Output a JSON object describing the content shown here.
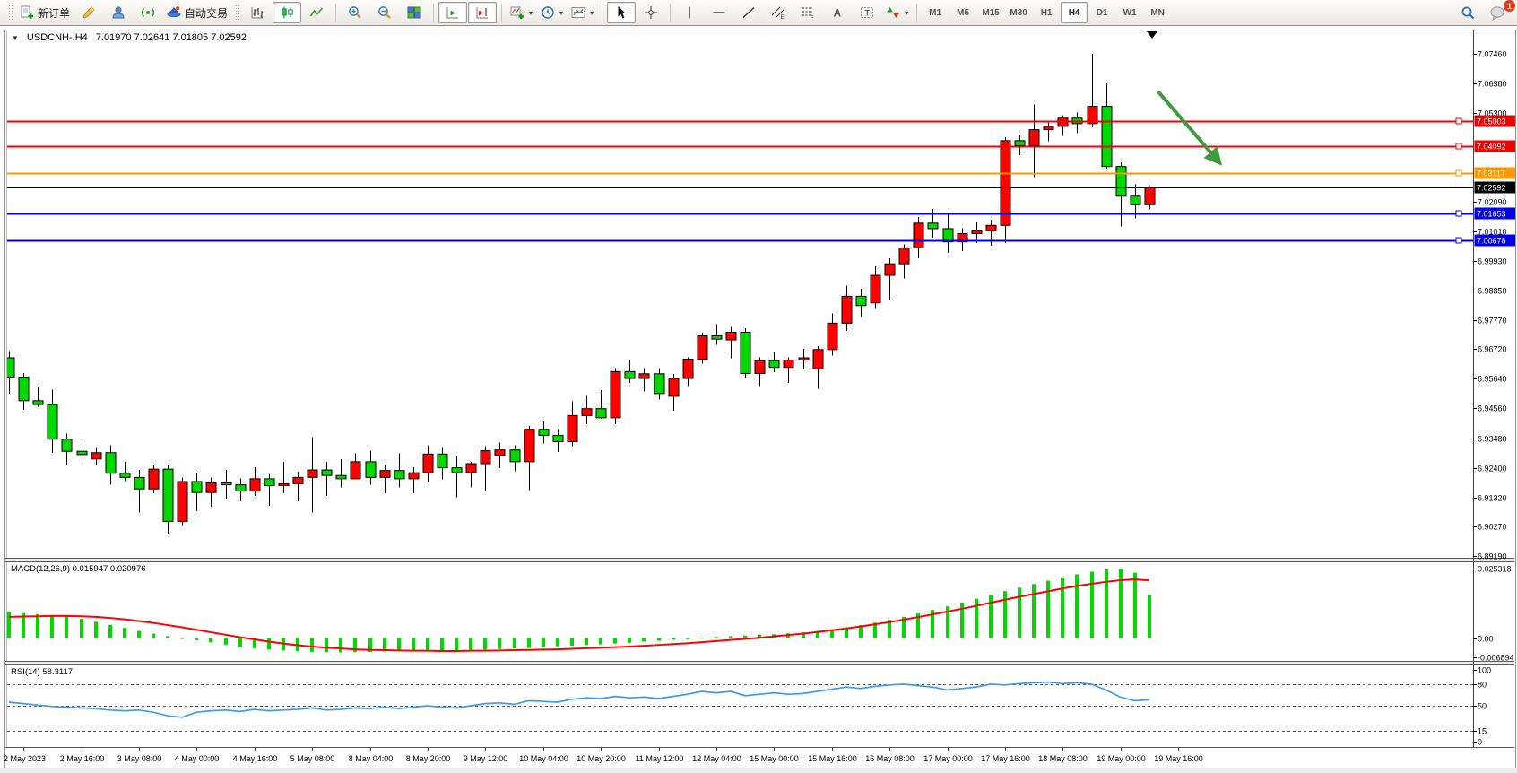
{
  "icons": {
    "dropdown_arrow": "▾",
    "collapse_triangle": "▼"
  },
  "toolbar": {
    "new_order_label": "新订单",
    "auto_trading_label": "自动交易",
    "timeframes": [
      "M1",
      "M5",
      "M15",
      "M30",
      "H1",
      "H4",
      "D1",
      "W1",
      "MN"
    ],
    "active_timeframe": "H4",
    "notification_count": "1"
  },
  "chart": {
    "title_symbol": "USDCNH-,H4",
    "title_ohlc": "7.01970 7.02641 7.01805 7.02592"
  },
  "chart_data": {
    "type": "candlestick+indicators",
    "symbol": "USDCNH-",
    "period": "H4",
    "current_ohlc": {
      "open": "7.01970",
      "high": "7.02641",
      "low": "7.01805",
      "close": "7.02592"
    },
    "bull_color": "#FF0000",
    "bear_color": "#00D800",
    "main_ylim": [
      6.8919,
      7.0746
    ],
    "main_axis_ticks": [
      "7.07460",
      "7.06380",
      "7.05300",
      "7.02090",
      "7.01010",
      "6.99930",
      "6.98850",
      "6.97770",
      "6.96720",
      "6.95640",
      "6.94560",
      "6.93480",
      "6.92400",
      "6.91320",
      "6.90270",
      "6.89190"
    ],
    "hlines": [
      {
        "price": 7.05003,
        "label": "7.05003",
        "color": "#F00000",
        "width": 2
      },
      {
        "price": 7.04092,
        "label": "7.04092",
        "color": "#F00000",
        "width": 2
      },
      {
        "price": 7.03117,
        "label": "7.03117",
        "color": "#FF9800",
        "width": 2
      },
      {
        "price": 7.02592,
        "label": "7.02592",
        "color": "#000000",
        "width": 1
      },
      {
        "price": 7.01653,
        "label": "7.01653",
        "color": "#0000F0",
        "width": 2
      },
      {
        "price": 7.00678,
        "label": "7.00678",
        "color": "#0000F0",
        "width": 2
      }
    ],
    "x_labels": [
      "2 May 2023",
      "2 May 16:00",
      "3 May 08:00",
      "4 May 00:00",
      "4 May 16:00",
      "5 May 08:00",
      "8 May 04:00",
      "8 May 20:00",
      "9 May 12:00",
      "10 May 04:00",
      "10 May 20:00",
      "11 May 12:00",
      "12 May 04:00",
      "15 May 00:00",
      "15 May 16:00",
      "16 May 08:00",
      "17 May 00:00",
      "17 May 16:00",
      "18 May 08:00",
      "19 May 00:00",
      "19 May 16:00"
    ],
    "candles_ohlc": [
      [
        6.964,
        6.9665,
        6.951,
        6.957
      ],
      [
        6.957,
        6.9585,
        6.945,
        6.9484
      ],
      [
        6.9484,
        6.9535,
        6.9462,
        6.947
      ],
      [
        6.947,
        6.9525,
        6.9295,
        6.9344
      ],
      [
        6.9344,
        6.9365,
        6.9252,
        6.93
      ],
      [
        6.93,
        6.9335,
        6.927,
        6.9288
      ],
      [
        6.9272,
        6.9312,
        6.9248,
        6.9295
      ],
      [
        6.9295,
        6.9322,
        6.9178,
        6.922
      ],
      [
        6.922,
        6.9262,
        6.9192,
        6.9205
      ],
      [
        6.9205,
        6.9232,
        6.9078,
        6.9163
      ],
      [
        6.9163,
        6.9248,
        6.9148,
        6.9235
      ],
      [
        6.9235,
        6.9248,
        6.9,
        6.9045
      ],
      [
        6.9045,
        6.9205,
        6.9028,
        6.919
      ],
      [
        6.919,
        6.9222,
        6.9082,
        6.915
      ],
      [
        6.915,
        6.9205,
        6.9098,
        6.9185
      ],
      [
        6.9185,
        6.9232,
        6.9128,
        6.9178
      ],
      [
        6.9178,
        6.9202,
        6.9118,
        6.9155
      ],
      [
        6.9155,
        6.9242,
        6.9138,
        6.92
      ],
      [
        6.92,
        6.9218,
        6.9102,
        6.9175
      ],
      [
        6.9175,
        6.9262,
        6.9148,
        6.9182
      ],
      [
        6.9182,
        6.9225,
        6.9118,
        6.9205
      ],
      [
        6.9205,
        6.9352,
        6.9078,
        6.9232
      ],
      [
        6.9232,
        6.9262,
        6.9138,
        6.9212
      ],
      [
        6.9212,
        6.9272,
        6.9168,
        6.92
      ],
      [
        6.92,
        6.9292,
        6.9198,
        6.9262
      ],
      [
        6.9262,
        6.9302,
        6.9178,
        6.9205
      ],
      [
        6.9205,
        6.9252,
        6.9148,
        6.923
      ],
      [
        6.923,
        6.9292,
        6.9168,
        6.92
      ],
      [
        6.92,
        6.9242,
        6.9148,
        6.9222
      ],
      [
        6.9222,
        6.9322,
        6.9188,
        6.929
      ],
      [
        6.929,
        6.9312,
        6.9198,
        6.924
      ],
      [
        6.924,
        6.9282,
        6.9132,
        6.9222
      ],
      [
        6.9222,
        6.9262,
        6.9168,
        6.9255
      ],
      [
        6.9255,
        6.9318,
        6.9155,
        6.9302
      ],
      [
        6.9285,
        6.9332,
        6.9238,
        6.9305
      ],
      [
        6.9305,
        6.9322,
        6.9228,
        6.9262
      ],
      [
        6.9262,
        6.9392,
        6.9158,
        6.938
      ],
      [
        6.938,
        6.9408,
        6.9328,
        6.9358
      ],
      [
        6.9358,
        6.938,
        6.9298,
        6.9335
      ],
      [
        6.9335,
        6.9482,
        6.9318,
        6.943
      ],
      [
        6.943,
        6.9502,
        6.9398,
        6.9455
      ],
      [
        6.9455,
        6.9522,
        6.9418,
        6.9422
      ],
      [
        6.9422,
        6.9602,
        6.9398,
        6.959
      ],
      [
        6.959,
        6.9632,
        6.9548,
        6.9565
      ],
      [
        6.9565,
        6.9602,
        6.9518,
        6.9582
      ],
      [
        6.9582,
        6.9602,
        6.9488,
        6.951
      ],
      [
        6.95,
        6.9582,
        6.9448,
        6.9565
      ],
      [
        6.9565,
        6.9642,
        6.9538,
        6.9635
      ],
      [
        6.9635,
        6.9732,
        6.9618,
        6.972
      ],
      [
        6.972,
        6.9762,
        6.9688,
        6.9708
      ],
      [
        6.9705,
        6.9752,
        6.9638,
        6.9733
      ],
      [
        6.9733,
        6.9748,
        6.9568,
        6.9583
      ],
      [
        6.9583,
        6.9642,
        6.9538,
        6.963
      ],
      [
        6.963,
        6.9662,
        6.9588,
        6.9605
      ],
      [
        6.9605,
        6.9642,
        6.9548,
        6.9632
      ],
      [
        6.9632,
        6.9672,
        6.9598,
        6.964
      ],
      [
        6.96,
        6.9682,
        6.9528,
        6.967
      ],
      [
        6.967,
        6.9802,
        6.9648,
        6.9766
      ],
      [
        6.9766,
        6.9902,
        6.9738,
        6.9864
      ],
      [
        6.9864,
        6.9892,
        6.9788,
        6.983
      ],
      [
        6.984,
        6.9972,
        6.9818,
        6.994
      ],
      [
        6.994,
        7.0002,
        6.9848,
        6.9982
      ],
      [
        6.9982,
        7.0052,
        6.9928,
        7.004
      ],
      [
        7.004,
        7.0152,
        7.0002,
        7.013
      ],
      [
        7.013,
        7.0182,
        7.0078,
        7.011
      ],
      [
        7.011,
        7.0162,
        7.0022,
        7.0062
      ],
      [
        7.0062,
        7.0112,
        7.0028,
        7.0092
      ],
      [
        7.0092,
        7.0132,
        7.0058,
        7.0102
      ],
      [
        7.0102,
        7.0142,
        7.0048,
        7.0122
      ],
      [
        7.0122,
        7.0442,
        7.0058,
        7.043
      ],
      [
        7.043,
        7.0452,
        7.0378,
        7.0412
      ],
      [
        7.0412,
        7.0562,
        7.0298,
        7.047
      ],
      [
        7.047,
        7.0502,
        7.0428,
        7.0482
      ],
      [
        7.0482,
        7.0522,
        7.0448,
        7.0512
      ],
      [
        7.0512,
        7.0532,
        7.0458,
        7.0492
      ],
      [
        7.0492,
        7.0746,
        7.0478,
        7.0555
      ],
      [
        7.0555,
        7.0642,
        7.033,
        7.0336
      ],
      [
        7.0336,
        7.0352,
        7.0118,
        7.0228
      ],
      [
        7.0228,
        7.0272,
        7.0148,
        7.0197
      ],
      [
        7.0197,
        7.02641,
        7.01805,
        7.02592
      ]
    ],
    "macd": {
      "label": "MACD(12,26,9) 0.015947 0.020976",
      "main_value": "0.015947",
      "signal_value": "0.020976",
      "ylim": [
        -0.006894,
        0.025318
      ],
      "axis_ticks": [
        "0.025318",
        "0.00",
        "-0.006894"
      ],
      "hist_color": "#00D800",
      "signal_color": "#FF0000",
      "histogram": [
        0.0095,
        0.0091,
        0.0088,
        0.0084,
        0.0079,
        0.0071,
        0.006,
        0.0049,
        0.0038,
        0.0027,
        0.0017,
        0.0008,
        0.0001,
        -0.0007,
        -0.0015,
        -0.0023,
        -0.003,
        -0.0036,
        -0.0041,
        -0.0044,
        -0.0047,
        -0.0049,
        -0.005,
        -0.0051,
        -0.005,
        -0.0049,
        -0.0048,
        -0.0047,
        -0.0046,
        -0.0045,
        -0.0044,
        -0.0043,
        -0.0042,
        -0.0041,
        -0.0039,
        -0.0037,
        -0.0035,
        -0.0032,
        -0.0029,
        -0.0027,
        -0.0024,
        -0.0022,
        -0.0019,
        -0.0016,
        -0.0012,
        -0.0009,
        -0.0005,
        -0.0002,
        0.0002,
        0.0005,
        0.0008,
        0.001,
        0.0013,
        0.0015,
        0.0018,
        0.0022,
        0.0027,
        0.0033,
        0.004,
        0.0048,
        0.0057,
        0.0067,
        0.0078,
        0.009,
        0.0103,
        0.0116,
        0.013,
        0.0144,
        0.0158,
        0.0171,
        0.0184,
        0.0197,
        0.0209,
        0.0221,
        0.0232,
        0.0242,
        0.025,
        0.0253,
        0.0238,
        0.0159
      ],
      "signal": [
        0.0078,
        0.0079,
        0.008,
        0.0081,
        0.0081,
        0.008,
        0.0078,
        0.0074,
        0.0069,
        0.0063,
        0.0056,
        0.0048,
        0.004,
        0.0031,
        0.0022,
        0.0013,
        0.0004,
        -0.0004,
        -0.0012,
        -0.0019,
        -0.0025,
        -0.003,
        -0.0034,
        -0.0037,
        -0.004,
        -0.0042,
        -0.0043,
        -0.0044,
        -0.0045,
        -0.0045,
        -0.0046,
        -0.0046,
        -0.0045,
        -0.0045,
        -0.0044,
        -0.0043,
        -0.0042,
        -0.0041,
        -0.004,
        -0.0038,
        -0.0036,
        -0.0034,
        -0.0032,
        -0.003,
        -0.0027,
        -0.0024,
        -0.0021,
        -0.0018,
        -0.0014,
        -0.001,
        -0.0006,
        -0.0002,
        0.0002,
        0.0007,
        0.0012,
        0.0017,
        0.0023,
        0.0029,
        0.0036,
        0.0043,
        0.0051,
        0.0059,
        0.0068,
        0.0077,
        0.0087,
        0.0097,
        0.0107,
        0.0118,
        0.0129,
        0.014,
        0.0151,
        0.0161,
        0.0171,
        0.0181,
        0.019,
        0.0198,
        0.0205,
        0.0211,
        0.0214,
        0.021
      ]
    },
    "rsi": {
      "label": "RSI(14) 58.3117",
      "value": 58.3117,
      "ylim": [
        0,
        100
      ],
      "levels": [
        80,
        50,
        15
      ],
      "axis_ticks": [
        "100",
        "80",
        "50",
        "15",
        "0"
      ],
      "line_color": "#3D9BEF",
      "values": [
        55,
        53,
        51,
        49,
        48,
        47,
        46,
        44,
        43,
        44,
        41,
        36,
        34,
        41,
        43,
        44,
        42,
        45,
        43,
        44,
        45,
        47,
        44,
        45,
        47,
        46,
        48,
        46,
        48,
        50,
        48,
        47,
        50,
        53,
        54,
        52,
        57,
        56,
        55,
        59,
        61,
        60,
        63,
        61,
        62,
        60,
        63,
        66,
        70,
        68,
        70,
        64,
        66,
        68,
        66,
        67,
        70,
        73,
        76,
        74,
        77,
        79,
        80,
        78,
        76,
        72,
        74,
        76,
        80,
        79,
        81,
        82,
        83,
        81,
        82,
        80,
        72,
        62,
        57,
        58.3
      ]
    },
    "annotation_arrow": {
      "from_bar": 79.6,
      "from_price": 7.0609,
      "to_bar": 83.8,
      "to_price": 7.0354,
      "color": "#3E9B3E"
    }
  }
}
